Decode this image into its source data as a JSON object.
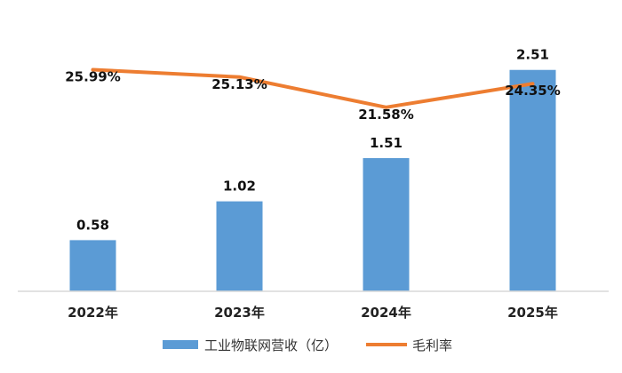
{
  "chart_data": {
    "type": "bar",
    "categories": [
      "2022年",
      "2023年",
      "2024年",
      "2025年"
    ],
    "series": [
      {
        "name": "工业物联网营收（亿）",
        "kind": "bar",
        "values": [
          0.58,
          1.02,
          1.51,
          2.51
        ],
        "labels": [
          "0.58",
          "1.02",
          "1.51",
          "2.51"
        ],
        "color": "#5b9bd5"
      },
      {
        "name": "毛利率",
        "kind": "line",
        "axis": "secondary",
        "values": [
          25.99,
          25.13,
          21.58,
          24.35
        ],
        "labels": [
          "25.99%",
          "25.13%",
          "21.58%",
          "24.35%"
        ],
        "color": "#ed7d31"
      }
    ],
    "ylim": [
      0,
      2.9
    ],
    "y2lim": [
      0,
      30
    ],
    "legend": "bottom",
    "grid": false
  }
}
